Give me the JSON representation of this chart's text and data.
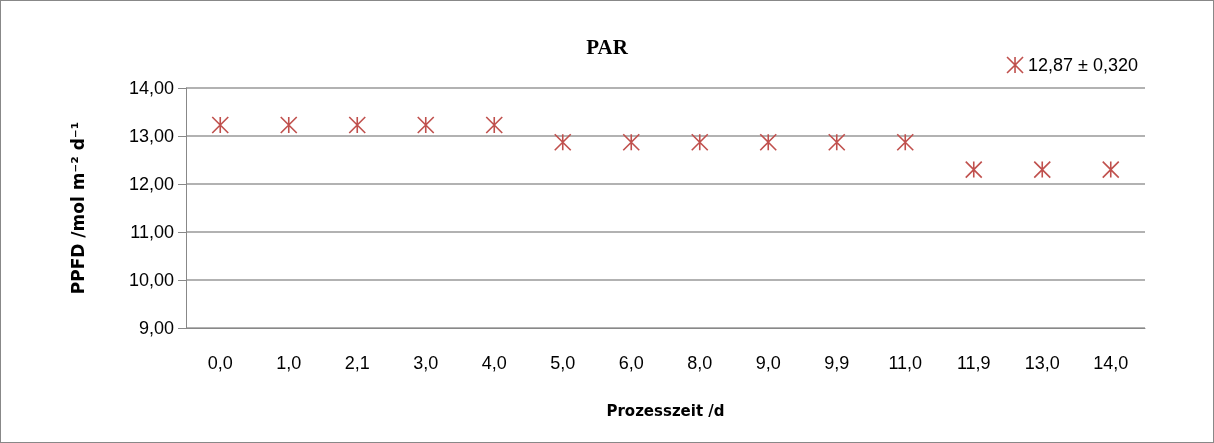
{
  "chart_data": {
    "type": "scatter",
    "title": "PAR",
    "xlabel": "Prozesszeit /d",
    "ylabel": "PPFD /mol m⁻² d⁻¹",
    "categories": [
      "0,0",
      "1,0",
      "2,1",
      "3,0",
      "4,0",
      "5,0",
      "6,0",
      "8,0",
      "9,0",
      "9,9",
      "11,0",
      "11,9",
      "13,0",
      "14,0"
    ],
    "series": [
      {
        "name": "12,87 ± 0,320",
        "color": "#c0504d",
        "values": [
          13.23,
          13.23,
          13.23,
          13.23,
          13.23,
          12.87,
          12.87,
          12.87,
          12.87,
          12.87,
          12.87,
          12.3,
          12.3,
          12.3
        ]
      }
    ],
    "ylim": [
      9,
      14
    ],
    "yticks": [
      {
        "value": 9,
        "label": "9,00"
      },
      {
        "value": 10,
        "label": "10,00"
      },
      {
        "value": 11,
        "label": "11,00"
      },
      {
        "value": 12,
        "label": "12,00"
      },
      {
        "value": 13,
        "label": "13,00"
      },
      {
        "value": 14,
        "label": "14,00"
      }
    ],
    "grid": "y",
    "legend": "top right",
    "marker": "cross"
  }
}
